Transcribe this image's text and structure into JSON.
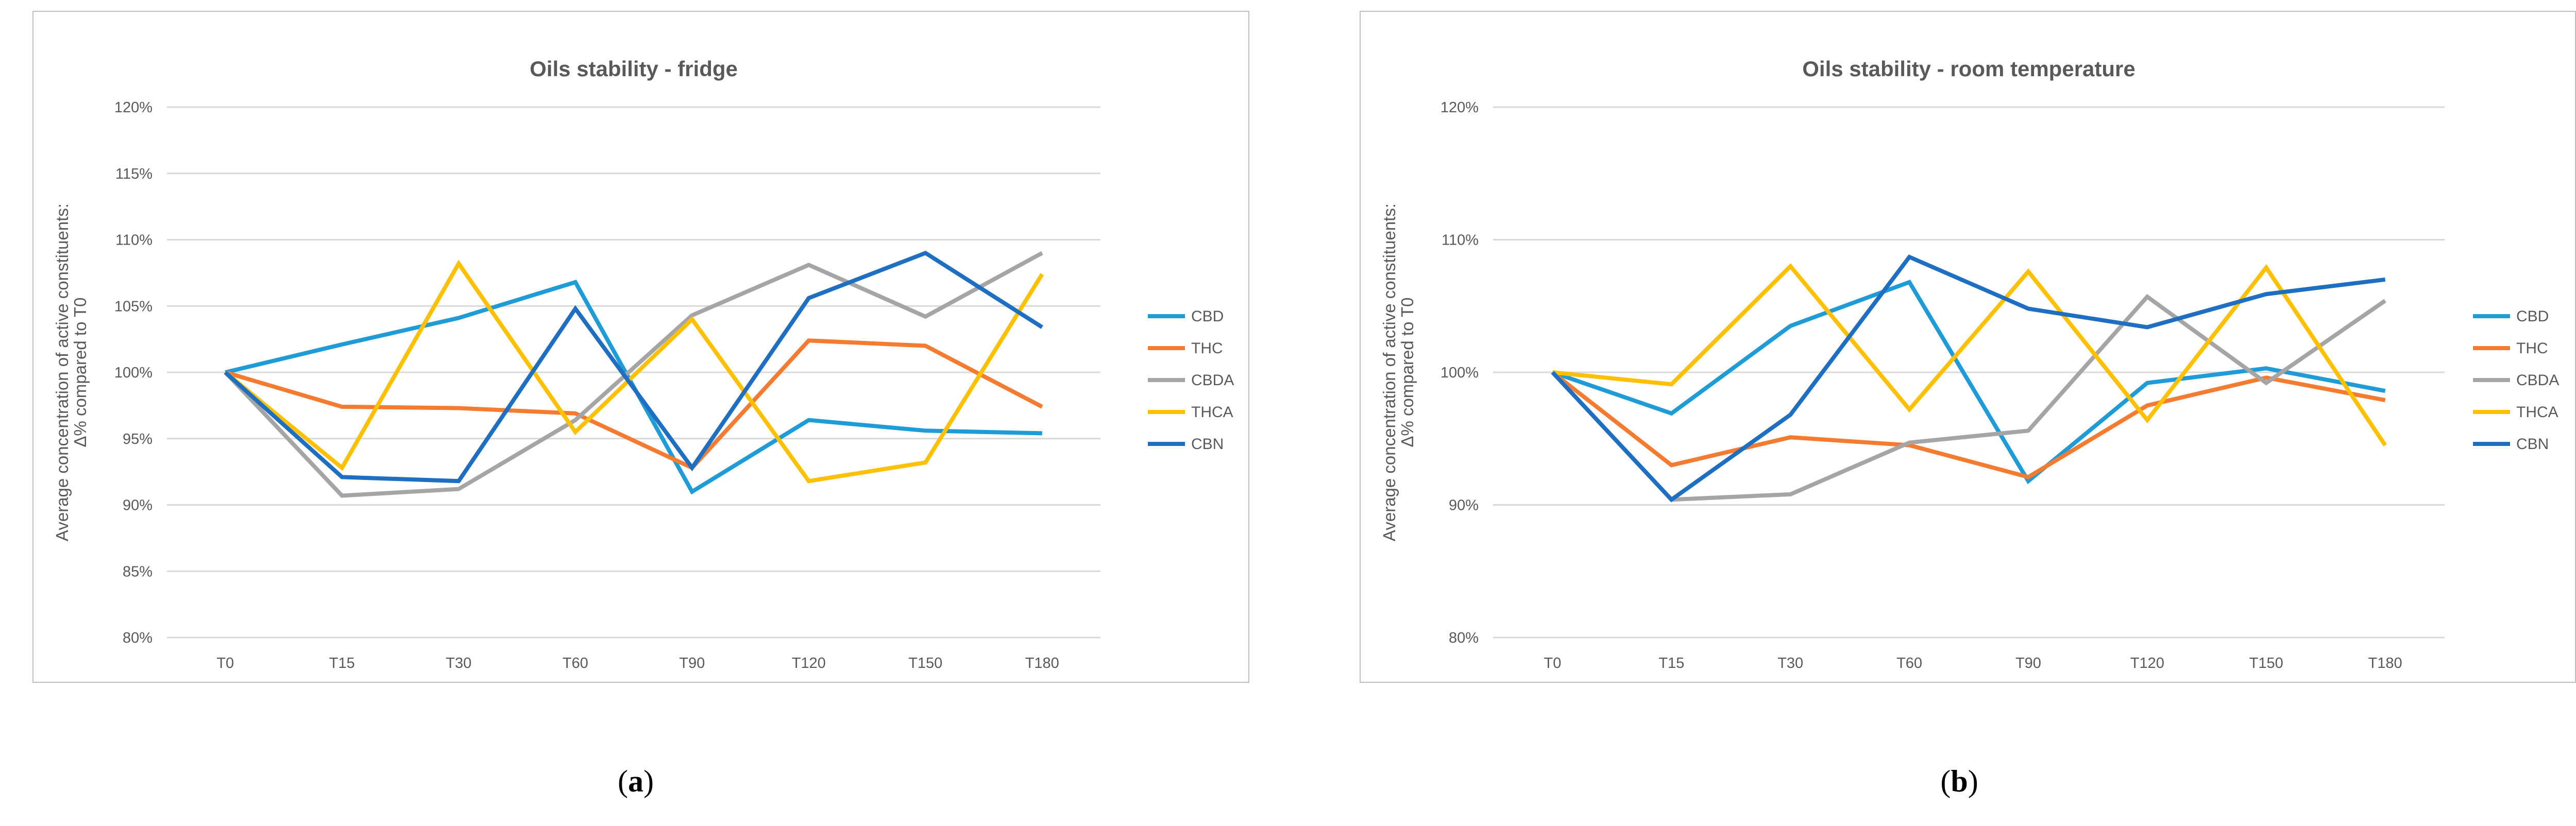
{
  "colors": {
    "CBD": "#1f9bd7",
    "THC": "#f47b30",
    "CBDA": "#a5a5a5",
    "THCA": "#ffc000",
    "CBN": "#1e6fc2",
    "grid": "#d9d9d9",
    "frame": "#bfbfbf",
    "text": "#595959"
  },
  "chart_data": [
    {
      "type": "line",
      "title": "Oils stability - fridge",
      "ylabel_line1": "Average concentration of active constituents:",
      "ylabel_line2": "Δ% compared to T0",
      "xlabel": "",
      "categories": [
        "T0",
        "T15",
        "T30",
        "T60",
        "T90",
        "T120",
        "T150",
        "T180"
      ],
      "y_ticks": [
        "80%",
        "85%",
        "90%",
        "95%",
        "100%",
        "105%",
        "110%",
        "115%",
        "120%"
      ],
      "ylim": [
        80,
        120
      ],
      "legend_position": "right",
      "series": [
        {
          "name": "CBD",
          "values": [
            100,
            102.1,
            104.1,
            106.8,
            91.0,
            96.4,
            95.6,
            95.4
          ]
        },
        {
          "name": "THC",
          "values": [
            100,
            97.4,
            97.3,
            96.9,
            92.8,
            102.4,
            102.0,
            97.4
          ]
        },
        {
          "name": "CBDA",
          "values": [
            100,
            90.7,
            91.2,
            96.4,
            104.3,
            108.1,
            104.2,
            109.0
          ]
        },
        {
          "name": "THCA",
          "values": [
            100,
            92.8,
            108.2,
            95.5,
            104.0,
            91.8,
            93.2,
            107.4
          ]
        },
        {
          "name": "CBN",
          "values": [
            100,
            92.1,
            91.8,
            104.8,
            92.8,
            105.6,
            109.0,
            103.4
          ]
        }
      ],
      "caption": "a"
    },
    {
      "type": "line",
      "title": "Oils stability - room temperature",
      "ylabel_line1": "Average concentration of active constituents:",
      "ylabel_line2": "Δ% compared to T0",
      "xlabel": "",
      "categories": [
        "T0",
        "T15",
        "T30",
        "T60",
        "T90",
        "T120",
        "T150",
        "T180"
      ],
      "y_ticks": [
        "80%",
        "90%",
        "100%",
        "110%",
        "120%"
      ],
      "ylim": [
        80,
        120
      ],
      "legend_position": "right",
      "series": [
        {
          "name": "CBD",
          "values": [
            100,
            96.9,
            103.5,
            106.8,
            91.8,
            99.2,
            100.3,
            98.6
          ]
        },
        {
          "name": "THC",
          "values": [
            100,
            93.0,
            95.1,
            94.5,
            92.1,
            97.5,
            99.6,
            97.9
          ]
        },
        {
          "name": "CBDA",
          "values": [
            100,
            90.4,
            90.8,
            94.7,
            95.6,
            105.7,
            99.2,
            105.4
          ]
        },
        {
          "name": "THCA",
          "values": [
            100,
            99.1,
            108.0,
            97.2,
            107.6,
            96.4,
            107.9,
            94.5
          ]
        },
        {
          "name": "CBN",
          "values": [
            100,
            90.4,
            96.8,
            108.7,
            104.8,
            103.4,
            105.9,
            107.0
          ]
        }
      ],
      "caption": "b"
    }
  ]
}
